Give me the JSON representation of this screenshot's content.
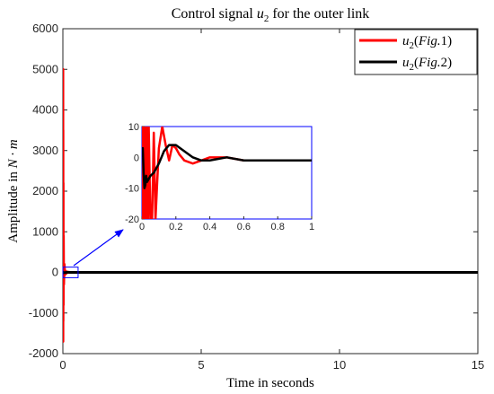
{
  "chart_data": {
    "type": "line",
    "title": {
      "text": "Control signal ",
      "var": "u",
      "sub": "2",
      "suffix": " for the outer link"
    },
    "xlabel": "Time in seconds",
    "ylabel": {
      "text": "Amplitude in ",
      "unit": "N · m"
    },
    "xlim": [
      0,
      15
    ],
    "ylim": [
      -2000,
      6000
    ],
    "xticks": [
      "0",
      "5",
      "10",
      "15"
    ],
    "xtick_values": [
      0,
      5,
      10,
      15
    ],
    "yticks": [
      "-2000",
      "-1000",
      "0",
      "1000",
      "2000",
      "3000",
      "4000",
      "5000",
      "6000"
    ],
    "ytick_values": [
      -2000,
      -1000,
      0,
      1000,
      2000,
      3000,
      4000,
      5000,
      6000
    ],
    "grid": false,
    "legend_position": "top-right",
    "series": [
      {
        "name": {
          "var": "u",
          "sub": "2",
          "paren": "Fig.",
          "num": "1"
        },
        "color": "#ff0000",
        "x": [
          0,
          0.002,
          0.004,
          0.006,
          0.008,
          0.012,
          0.016,
          0.02,
          0.03,
          0.05,
          0.07,
          0.1,
          0.13,
          0.16,
          0.2,
          0.25,
          0.3,
          0.4,
          0.5,
          1,
          15
        ],
        "y": [
          0,
          5000,
          -1700,
          3500,
          -1200,
          2200,
          -800,
          900,
          -300,
          200,
          -60,
          30,
          -20,
          8,
          3,
          0,
          -1,
          0,
          0,
          0,
          0
        ]
      },
      {
        "name": {
          "var": "u",
          "sub": "2",
          "paren": "Fig.",
          "num": "2"
        },
        "color": "#000000",
        "x": [
          0,
          0.01,
          0.02,
          0.03,
          0.05,
          0.1,
          0.15,
          0.2,
          0.3,
          0.5,
          1,
          15
        ],
        "y": [
          0,
          3,
          -10,
          -6,
          -8,
          -2,
          3,
          3,
          0,
          -1,
          -1,
          -1
        ]
      }
    ],
    "highlight_box": {
      "x": [
        0,
        0.55
      ],
      "y": [
        -130,
        130
      ]
    },
    "inset": {
      "xlim": [
        0,
        1
      ],
      "ylim": [
        -20,
        10
      ],
      "xticks": [
        "0",
        "0.2",
        "0.4",
        "0.6",
        "0.8",
        "1"
      ],
      "xtick_values": [
        0,
        0.2,
        0.4,
        0.6,
        0.8,
        1
      ],
      "yticks": [
        "-20",
        "-10",
        "0",
        "10"
      ],
      "ytick_values": [
        -20,
        -10,
        0,
        10
      ],
      "series": [
        {
          "color": "#ff0000",
          "x": [
            0,
            0.003,
            0.006,
            0.009,
            0.012,
            0.015,
            0.018,
            0.021,
            0.024,
            0.027,
            0.03,
            0.033,
            0.036,
            0.04,
            0.05,
            0.06,
            0.07,
            0.08,
            0.09,
            0.1,
            0.12,
            0.14,
            0.16,
            0.18,
            0.2,
            0.22,
            0.25,
            0.3,
            0.35,
            0.4,
            0.5,
            0.6,
            0.8,
            1.0
          ],
          "y": [
            0,
            10,
            -20,
            10,
            -20,
            10,
            -20,
            10,
            -20,
            10,
            -20,
            10,
            -20,
            10,
            -20,
            -20,
            8,
            -20,
            -8,
            3,
            10,
            4,
            -1,
            4,
            3,
            1,
            -1,
            -2,
            -1,
            0,
            0,
            -1,
            -1,
            -1
          ]
        },
        {
          "color": "#000000",
          "x": [
            0,
            0.005,
            0.01,
            0.015,
            0.02,
            0.025,
            0.03,
            0.04,
            0.05,
            0.07,
            0.1,
            0.13,
            0.16,
            0.2,
            0.25,
            0.3,
            0.35,
            0.4,
            0.5,
            0.6,
            0.8,
            1.0
          ],
          "y": [
            0,
            3,
            -5,
            -10,
            -9,
            -6,
            -8,
            -7,
            -6,
            -5,
            -2,
            2,
            4,
            4,
            2,
            0,
            -1,
            -1,
            0,
            -1,
            -1,
            -1
          ]
        }
      ]
    }
  }
}
